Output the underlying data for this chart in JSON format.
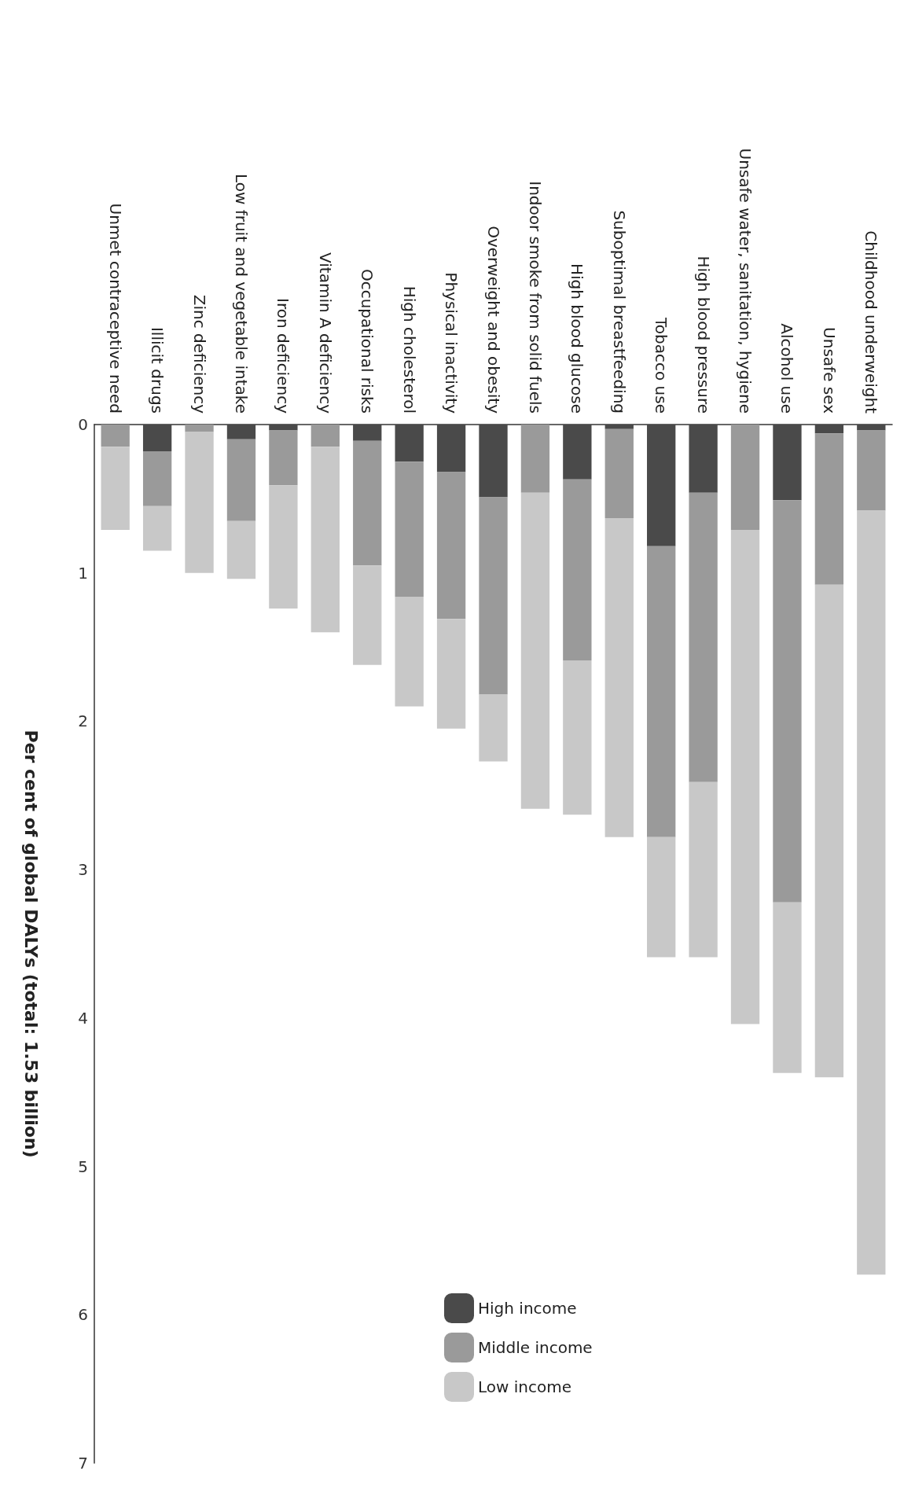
{
  "chart_data": {
    "type": "bar",
    "stacked": true,
    "ylabel": "Per cent of global DALYs (total: 1.53 billion)",
    "categories": [
      "Unmet contraceptive need",
      "Illicit drugs",
      "Zinc deficiency",
      "Low fruit and vegetable intake",
      "Iron deficiency",
      "Vitamin A deficiency",
      "Occupational risks",
      "High cholesterol",
      "Physical inactivity",
      "Overweight and obesity",
      "Indoor smoke from solid fuels",
      "High blood glucose",
      "Suboptimal breastfeeding",
      "Tobacco use",
      "High blood pressure",
      "Unsafe water, sanitation, hygiene",
      "Alcohol use",
      "Unsafe sex",
      "Childhood underweight"
    ],
    "series": [
      {
        "name": "High income",
        "color": "#4a4a4a",
        "values": [
          0,
          0.18,
          0,
          0.1,
          0.04,
          0,
          0.11,
          0.25,
          0.32,
          0.49,
          0,
          0.37,
          0.03,
          0.82,
          0.46,
          0,
          0.51,
          0.06,
          0.04
        ]
      },
      {
        "name": "Middle income",
        "color": "#9a9a9a",
        "values": [
          0.15,
          0.37,
          0.05,
          0.55,
          0.37,
          0.15,
          0.84,
          0.91,
          0.99,
          1.33,
          0.46,
          1.22,
          0.6,
          1.96,
          1.95,
          0.71,
          2.71,
          1.02,
          0.54
        ]
      },
      {
        "name": "Low income",
        "color": "#c8c8c8",
        "values": [
          0.56,
          0.3,
          0.95,
          0.39,
          0.83,
          1.25,
          0.67,
          0.74,
          0.74,
          0.45,
          2.13,
          1.04,
          2.15,
          0.81,
          1.18,
          3.33,
          1.15,
          3.32,
          5.15
        ]
      }
    ],
    "ylim": [
      7,
      0
    ],
    "yticks": [
      0,
      1,
      2,
      3,
      4,
      5,
      6,
      7
    ],
    "grid": false,
    "legend": "bottom"
  }
}
